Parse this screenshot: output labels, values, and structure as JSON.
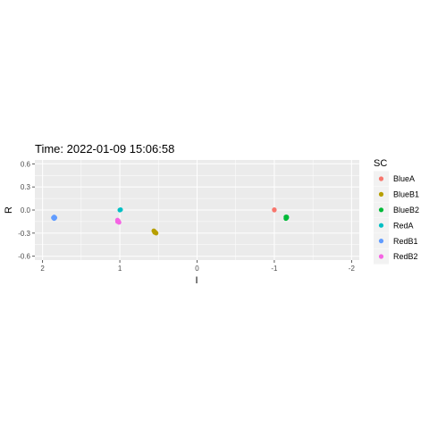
{
  "chart_data": {
    "type": "scatter",
    "title": "Time: 2022-01-09 15:06:58",
    "xlabel": "I",
    "ylabel": "R",
    "x_reversed": true,
    "xlim": [
      2.1,
      -2.1
    ],
    "ylim": [
      -0.65,
      0.65
    ],
    "x_ticks": [
      2,
      1,
      0,
      -1,
      -2
    ],
    "x_tick_labels": [
      "2",
      "1",
      "0",
      "-1",
      "-2"
    ],
    "y_ticks": [
      0.6,
      0.3,
      0.0,
      -0.3,
      -0.6
    ],
    "y_tick_labels": [
      "0.6",
      "0.3",
      "0.0",
      "-0.3",
      "-0.6"
    ],
    "grid": true,
    "legend_title": "SC",
    "legend_position": "right",
    "series": [
      {
        "name": "BlueA",
        "color": "#F8766D",
        "points": [
          [
            -1.0,
            0.0
          ],
          [
            -1.0,
            0.005
          ]
        ]
      },
      {
        "name": "BlueB1",
        "color": "#B79F00",
        "points": [
          [
            0.56,
            -0.27
          ],
          [
            0.55,
            -0.28
          ],
          [
            0.54,
            -0.29
          ],
          [
            0.53,
            -0.3
          ],
          [
            0.55,
            -0.29
          ]
        ]
      },
      {
        "name": "BlueB2",
        "color": "#00BA38",
        "points": [
          [
            -1.15,
            -0.09
          ],
          [
            -1.16,
            -0.1
          ],
          [
            -1.15,
            -0.11
          ],
          [
            -1.16,
            -0.09
          ]
        ]
      },
      {
        "name": "RedA",
        "color": "#00BFC4",
        "points": [
          [
            1.0,
            0.0
          ],
          [
            0.99,
            0.005
          ]
        ]
      },
      {
        "name": "RedB1",
        "color": "#619CFF",
        "points": [
          [
            1.85,
            -0.09
          ],
          [
            1.86,
            -0.1
          ],
          [
            1.84,
            -0.1
          ],
          [
            1.85,
            -0.11
          ]
        ]
      },
      {
        "name": "RedB2",
        "color": "#F564E3",
        "points": [
          [
            1.03,
            -0.13
          ],
          [
            1.02,
            -0.14
          ],
          [
            1.03,
            -0.15
          ],
          [
            1.01,
            -0.16
          ],
          [
            1.02,
            -0.15
          ]
        ]
      }
    ]
  }
}
